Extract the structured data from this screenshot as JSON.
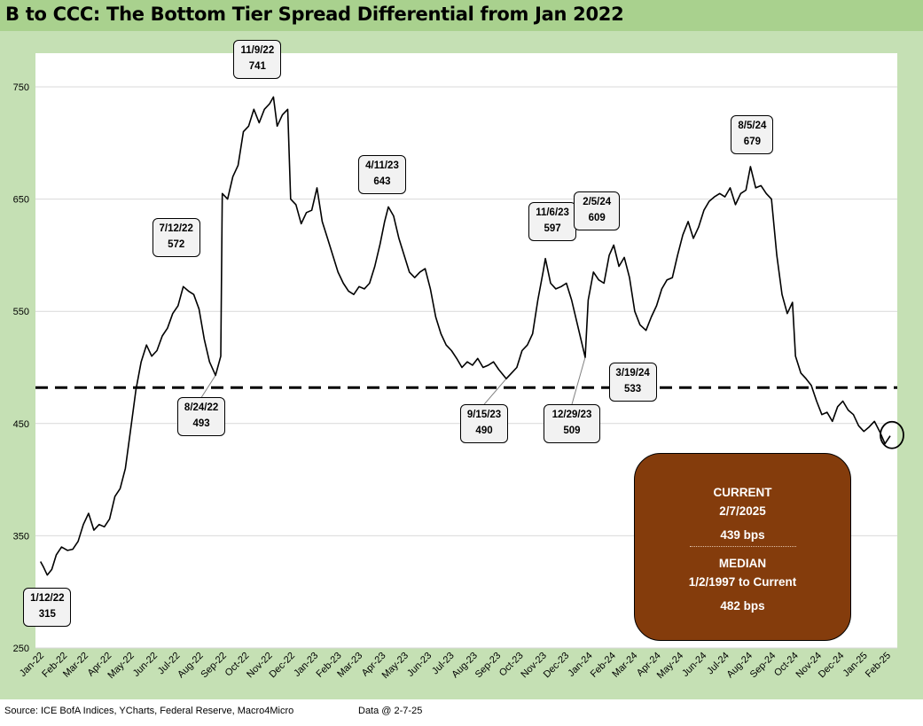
{
  "title": "B to CCC: The Bottom Tier Spread Differential from Jan 2022",
  "source": "Source: ICE BofA Indices, YCharts, Federal Reserve, Macro4Micro",
  "data_date": "Data @ 2-7-25",
  "summary": {
    "current_label": "CURRENT",
    "current_date": "2/7/2025",
    "current_value": "439 bps",
    "median_label": "MEDIAN",
    "median_range": "1/2/1997 to Current",
    "median_value": "482 bps"
  },
  "colors": {
    "line": "#000000",
    "summary_fill": "#843c0c",
    "frame": "#c5e0b4",
    "title_band": "#a9d18e"
  },
  "chart_data": {
    "type": "line",
    "ylim": [
      250,
      780
    ],
    "yticks": [
      250,
      350,
      450,
      550,
      650,
      750
    ],
    "grid": "horizontal",
    "x_start": "2022-01-01",
    "x_end": "2025-02-07",
    "xtick_labels": [
      "Jan-22",
      "Feb-22",
      "Mar-22",
      "Apr-22",
      "May-22",
      "Jun-22",
      "Jul-22",
      "Aug-22",
      "Sep-22",
      "Oct-22",
      "Nov-22",
      "Dec-22",
      "Jan-23",
      "Feb-23",
      "Mar-23",
      "Apr-23",
      "May-23",
      "Jun-23",
      "Jul-23",
      "Aug-23",
      "Sep-23",
      "Oct-23",
      "Nov-23",
      "Dec-23",
      "Jan-24",
      "Feb-24",
      "Mar-24",
      "Apr-24",
      "May-24",
      "Jun-24",
      "Jul-24",
      "Aug-24",
      "Sep-24",
      "Oct-24",
      "Nov-24",
      "Dec-24",
      "Jan-25",
      "Feb-25"
    ],
    "median_line": 482,
    "series": [
      {
        "points": [
          [
            "2022-01-03",
            327
          ],
          [
            "2022-01-07",
            322
          ],
          [
            "2022-01-12",
            315
          ],
          [
            "2022-01-18",
            320
          ],
          [
            "2022-01-24",
            333
          ],
          [
            "2022-01-31",
            340
          ],
          [
            "2022-02-08",
            337
          ],
          [
            "2022-02-15",
            338
          ],
          [
            "2022-02-22",
            345
          ],
          [
            "2022-03-01",
            360
          ],
          [
            "2022-03-08",
            370
          ],
          [
            "2022-03-15",
            355
          ],
          [
            "2022-03-22",
            360
          ],
          [
            "2022-03-29",
            358
          ],
          [
            "2022-04-05",
            365
          ],
          [
            "2022-04-12",
            385
          ],
          [
            "2022-04-19",
            392
          ],
          [
            "2022-04-26",
            410
          ],
          [
            "2022-05-03",
            445
          ],
          [
            "2022-05-10",
            480
          ],
          [
            "2022-05-17",
            505
          ],
          [
            "2022-05-24",
            520
          ],
          [
            "2022-05-31",
            510
          ],
          [
            "2022-06-07",
            515
          ],
          [
            "2022-06-14",
            528
          ],
          [
            "2022-06-21",
            535
          ],
          [
            "2022-06-28",
            548
          ],
          [
            "2022-07-05",
            555
          ],
          [
            "2022-07-12",
            572
          ],
          [
            "2022-07-19",
            568
          ],
          [
            "2022-07-26",
            565
          ],
          [
            "2022-08-02",
            552
          ],
          [
            "2022-08-09",
            525
          ],
          [
            "2022-08-16",
            505
          ],
          [
            "2022-08-24",
            493
          ],
          [
            "2022-08-31",
            510
          ],
          [
            "2022-09-02",
            655
          ],
          [
            "2022-09-09",
            650
          ],
          [
            "2022-09-16",
            670
          ],
          [
            "2022-09-23",
            680
          ],
          [
            "2022-09-30",
            710
          ],
          [
            "2022-10-07",
            715
          ],
          [
            "2022-10-14",
            730
          ],
          [
            "2022-10-21",
            718
          ],
          [
            "2022-10-28",
            730
          ],
          [
            "2022-11-04",
            735
          ],
          [
            "2022-11-09",
            741
          ],
          [
            "2022-11-14",
            715
          ],
          [
            "2022-11-21",
            725
          ],
          [
            "2022-11-28",
            730
          ],
          [
            "2022-12-02",
            650
          ],
          [
            "2022-12-09",
            645
          ],
          [
            "2022-12-16",
            628
          ],
          [
            "2022-12-23",
            638
          ],
          [
            "2022-12-30",
            640
          ],
          [
            "2023-01-06",
            660
          ],
          [
            "2023-01-13",
            630
          ],
          [
            "2023-01-20",
            615
          ],
          [
            "2023-01-27",
            600
          ],
          [
            "2023-02-03",
            585
          ],
          [
            "2023-02-10",
            575
          ],
          [
            "2023-02-17",
            568
          ],
          [
            "2023-02-24",
            565
          ],
          [
            "2023-03-03",
            572
          ],
          [
            "2023-03-10",
            570
          ],
          [
            "2023-03-17",
            575
          ],
          [
            "2023-03-24",
            590
          ],
          [
            "2023-03-31",
            610
          ],
          [
            "2023-04-06",
            630
          ],
          [
            "2023-04-11",
            643
          ],
          [
            "2023-04-18",
            635
          ],
          [
            "2023-04-25",
            615
          ],
          [
            "2023-05-02",
            600
          ],
          [
            "2023-05-09",
            585
          ],
          [
            "2023-05-16",
            580
          ],
          [
            "2023-05-23",
            585
          ],
          [
            "2023-05-30",
            588
          ],
          [
            "2023-06-06",
            570
          ],
          [
            "2023-06-13",
            545
          ],
          [
            "2023-06-20",
            530
          ],
          [
            "2023-06-27",
            520
          ],
          [
            "2023-07-04",
            515
          ],
          [
            "2023-07-11",
            508
          ],
          [
            "2023-07-18",
            500
          ],
          [
            "2023-07-25",
            505
          ],
          [
            "2023-08-01",
            502
          ],
          [
            "2023-08-08",
            508
          ],
          [
            "2023-08-15",
            500
          ],
          [
            "2023-08-22",
            502
          ],
          [
            "2023-08-29",
            505
          ],
          [
            "2023-09-05",
            498
          ],
          [
            "2023-09-15",
            490
          ],
          [
            "2023-09-22",
            495
          ],
          [
            "2023-09-29",
            500
          ],
          [
            "2023-10-06",
            515
          ],
          [
            "2023-10-13",
            520
          ],
          [
            "2023-10-20",
            530
          ],
          [
            "2023-10-27",
            560
          ],
          [
            "2023-11-03",
            585
          ],
          [
            "2023-11-06",
            597
          ],
          [
            "2023-11-13",
            575
          ],
          [
            "2023-11-20",
            570
          ],
          [
            "2023-11-27",
            572
          ],
          [
            "2023-12-04",
            575
          ],
          [
            "2023-12-11",
            560
          ],
          [
            "2023-12-18",
            540
          ],
          [
            "2023-12-29",
            509
          ],
          [
            "2024-01-02",
            560
          ],
          [
            "2024-01-09",
            585
          ],
          [
            "2024-01-16",
            578
          ],
          [
            "2024-01-23",
            575
          ],
          [
            "2024-01-30",
            600
          ],
          [
            "2024-02-05",
            609
          ],
          [
            "2024-02-12",
            590
          ],
          [
            "2024-02-19",
            598
          ],
          [
            "2024-02-26",
            580
          ],
          [
            "2024-03-04",
            550
          ],
          [
            "2024-03-11",
            538
          ],
          [
            "2024-03-19",
            533
          ],
          [
            "2024-03-26",
            545
          ],
          [
            "2024-04-02",
            555
          ],
          [
            "2024-04-09",
            570
          ],
          [
            "2024-04-16",
            578
          ],
          [
            "2024-04-23",
            580
          ],
          [
            "2024-04-30",
            600
          ],
          [
            "2024-05-07",
            618
          ],
          [
            "2024-05-14",
            630
          ],
          [
            "2024-05-21",
            615
          ],
          [
            "2024-05-28",
            625
          ],
          [
            "2024-06-04",
            640
          ],
          [
            "2024-06-11",
            648
          ],
          [
            "2024-06-18",
            652
          ],
          [
            "2024-06-25",
            655
          ],
          [
            "2024-07-02",
            652
          ],
          [
            "2024-07-09",
            660
          ],
          [
            "2024-07-16",
            645
          ],
          [
            "2024-07-23",
            655
          ],
          [
            "2024-07-30",
            658
          ],
          [
            "2024-08-05",
            679
          ],
          [
            "2024-08-12",
            660
          ],
          [
            "2024-08-19",
            662
          ],
          [
            "2024-08-26",
            655
          ],
          [
            "2024-09-02",
            650
          ],
          [
            "2024-09-09",
            600
          ],
          [
            "2024-09-16",
            565
          ],
          [
            "2024-09-23",
            548
          ],
          [
            "2024-09-30",
            558
          ],
          [
            "2024-10-04",
            510
          ],
          [
            "2024-10-11",
            495
          ],
          [
            "2024-10-18",
            490
          ],
          [
            "2024-10-25",
            484
          ],
          [
            "2024-11-01",
            470
          ],
          [
            "2024-11-08",
            458
          ],
          [
            "2024-11-15",
            460
          ],
          [
            "2024-11-22",
            452
          ],
          [
            "2024-11-29",
            465
          ],
          [
            "2024-12-06",
            470
          ],
          [
            "2024-12-13",
            462
          ],
          [
            "2024-12-20",
            458
          ],
          [
            "2024-12-27",
            448
          ],
          [
            "2025-01-03",
            443
          ],
          [
            "2025-01-10",
            447
          ],
          [
            "2025-01-17",
            452
          ],
          [
            "2025-01-24",
            443
          ],
          [
            "2025-01-31",
            432
          ],
          [
            "2025-02-07",
            439
          ]
        ]
      }
    ],
    "annotations": [
      {
        "date": "1/12/22",
        "value": "315",
        "x": "2022-01-12",
        "y": 315
      },
      {
        "date": "7/12/22",
        "value": "572",
        "x": "2022-07-12",
        "y": 572
      },
      {
        "date": "8/24/22",
        "value": "493",
        "x": "2022-08-24",
        "y": 493
      },
      {
        "date": "11/9/22",
        "value": "741",
        "x": "2022-11-09",
        "y": 741
      },
      {
        "date": "4/11/23",
        "value": "643",
        "x": "2023-04-11",
        "y": 643
      },
      {
        "date": "9/15/23",
        "value": "490",
        "x": "2023-09-15",
        "y": 490
      },
      {
        "date": "11/6/23",
        "value": "597",
        "x": "2023-11-06",
        "y": 597
      },
      {
        "date": "12/29/23",
        "value": "509",
        "x": "2023-12-29",
        "y": 509
      },
      {
        "date": "2/5/24",
        "value": "609",
        "x": "2024-02-05",
        "y": 609
      },
      {
        "date": "3/19/24",
        "value": "533",
        "x": "2024-03-19",
        "y": 533
      },
      {
        "date": "8/5/24",
        "value": "679",
        "x": "2024-08-05",
        "y": 679
      }
    ]
  }
}
